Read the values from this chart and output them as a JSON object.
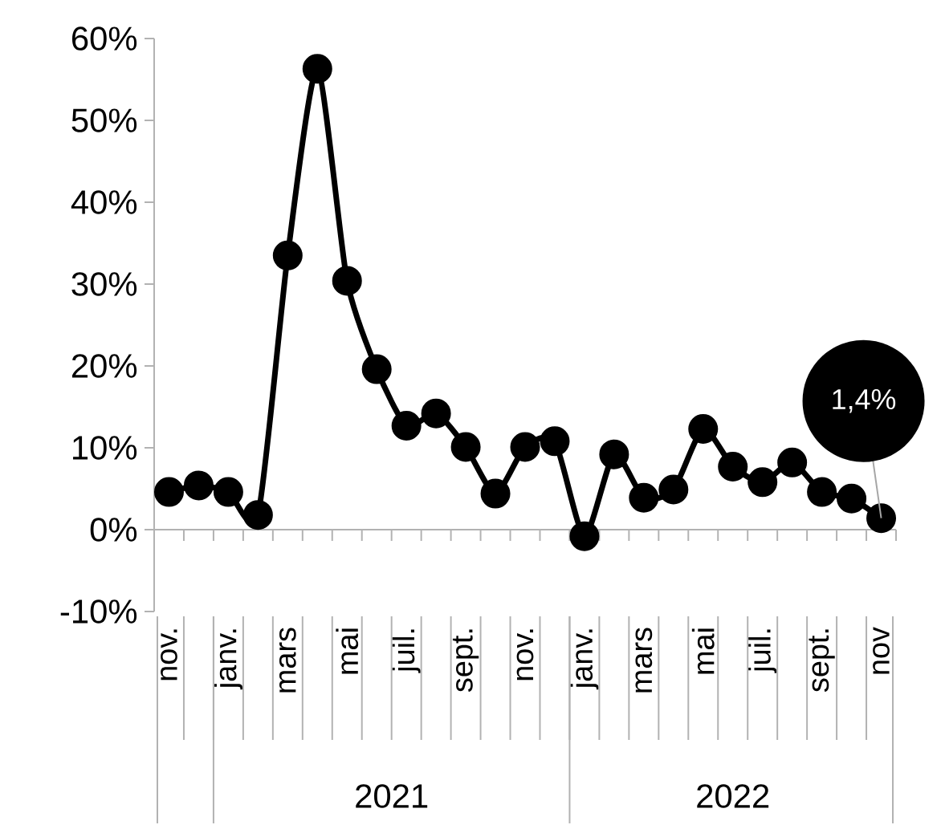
{
  "chart_data": {
    "type": "line",
    "categories": [
      "nov.",
      null,
      "janv.",
      null,
      "mars",
      null,
      "mai",
      null,
      "juil.",
      null,
      "sept.",
      null,
      "nov.",
      null,
      "janv.",
      null,
      "mars",
      null,
      "mai",
      null,
      "juil.",
      null,
      "sept.",
      null,
      "nov"
    ],
    "series": [
      {
        "color": "#000000",
        "values": [
          4.6,
          5.4,
          4.6,
          1.8,
          33.5,
          56.3,
          30.4,
          19.6,
          12.7,
          14.2,
          10.1,
          4.4,
          10.1,
          10.8,
          -0.8,
          9.2,
          3.9,
          4.9,
          12.3,
          7.7,
          5.8,
          8.2,
          4.6,
          3.8,
          1.4
        ]
      }
    ],
    "ylim": [
      -10,
      60
    ],
    "yticks": [
      {
        "value": -10,
        "label": "-10%"
      },
      {
        "value": 0,
        "label": "0%"
      },
      {
        "value": 10,
        "label": "10%"
      },
      {
        "value": 20,
        "label": "20%"
      },
      {
        "value": 30,
        "label": "30%"
      },
      {
        "value": 40,
        "label": "40%"
      },
      {
        "value": 50,
        "label": "50%"
      },
      {
        "value": 60,
        "label": "60%"
      }
    ],
    "marker": "circle",
    "line_style": "solid",
    "annotations": [
      {
        "text": "1,4%",
        "x": "nov",
        "y": 1.4
      },
      "2021",
      "2022"
    ]
  }
}
